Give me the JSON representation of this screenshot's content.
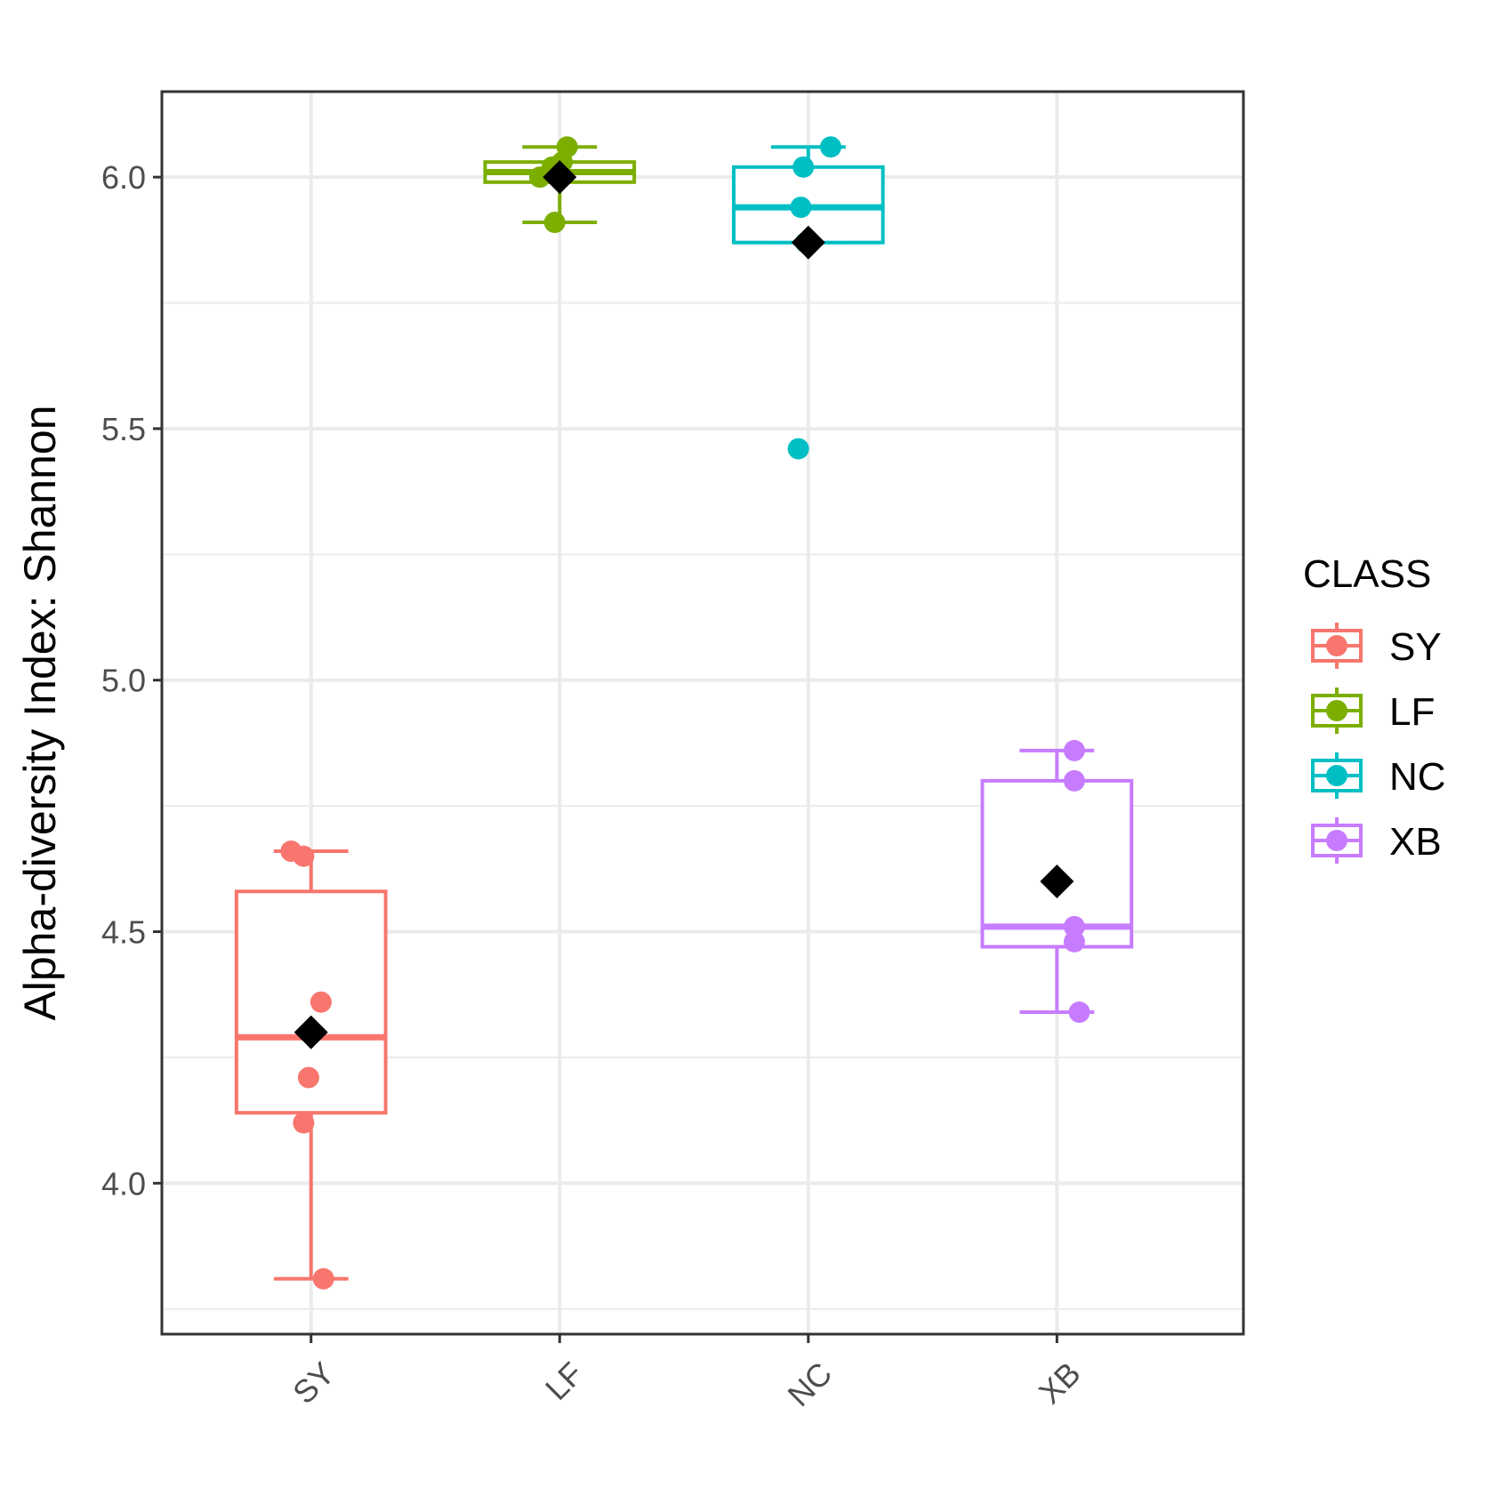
{
  "chart_data": {
    "type": "box",
    "ylabel": "Alpha-diversity Index: Shannon",
    "xlabel": "",
    "categories": [
      "SY",
      "LF",
      "NC",
      "XB"
    ],
    "ylim": [
      3.7,
      6.17
    ],
    "yticks": [
      "4.0",
      "4.5",
      "5.0",
      "5.5",
      "6.0"
    ],
    "ytick_values": [
      4.0,
      4.5,
      5.0,
      5.5,
      6.0
    ],
    "grid": true,
    "legend": {
      "title": "CLASS",
      "placement": "right",
      "entries": [
        "SY",
        "LF",
        "NC",
        "XB"
      ]
    },
    "series": [
      {
        "name": "SY",
        "color": "#F8766D",
        "box": {
          "min": 3.81,
          "q1": 4.14,
          "median": 4.29,
          "q3": 4.58,
          "max": 4.66
        },
        "mean": 4.3,
        "points": [
          {
            "dx": -0.08,
            "y": 4.66
          },
          {
            "dx": -0.03,
            "y": 4.65
          },
          {
            "dx": 0.04,
            "y": 4.36
          },
          {
            "dx": -0.01,
            "y": 4.21
          },
          {
            "dx": -0.03,
            "y": 4.12
          },
          {
            "dx": 0.05,
            "y": 3.81
          }
        ]
      },
      {
        "name": "LF",
        "color": "#7CAE00",
        "box": {
          "min": 5.91,
          "q1": 5.99,
          "median": 6.01,
          "q3": 6.03,
          "max": 6.06
        },
        "mean": 6.0,
        "points": [
          {
            "dx": 0.03,
            "y": 6.06
          },
          {
            "dx": 0.01,
            "y": 6.03
          },
          {
            "dx": -0.08,
            "y": 6.0
          },
          {
            "dx": -0.03,
            "y": 6.02
          },
          {
            "dx": -0.02,
            "y": 5.91
          }
        ]
      },
      {
        "name": "NC",
        "color": "#00BFC4",
        "box": {
          "min": 5.87,
          "q1": 5.87,
          "median": 5.94,
          "q3": 6.02,
          "max": 6.06
        },
        "mean": 5.87,
        "points": [
          {
            "dx": 0.09,
            "y": 6.06
          },
          {
            "dx": -0.02,
            "y": 6.02
          },
          {
            "dx": -0.03,
            "y": 5.94
          },
          {
            "dx": -0.01,
            "y": 5.87
          },
          {
            "dx": -0.04,
            "y": 5.46
          }
        ]
      },
      {
        "name": "XB",
        "color": "#C77CFF",
        "box": {
          "min": 4.34,
          "q1": 4.47,
          "median": 4.51,
          "q3": 4.8,
          "max": 4.86
        },
        "mean": 4.6,
        "points": [
          {
            "dx": 0.07,
            "y": 4.86
          },
          {
            "dx": 0.07,
            "y": 4.8
          },
          {
            "dx": 0.07,
            "y": 4.51
          },
          {
            "dx": 0.07,
            "y": 4.48
          },
          {
            "dx": 0.09,
            "y": 4.34
          }
        ]
      }
    ]
  }
}
